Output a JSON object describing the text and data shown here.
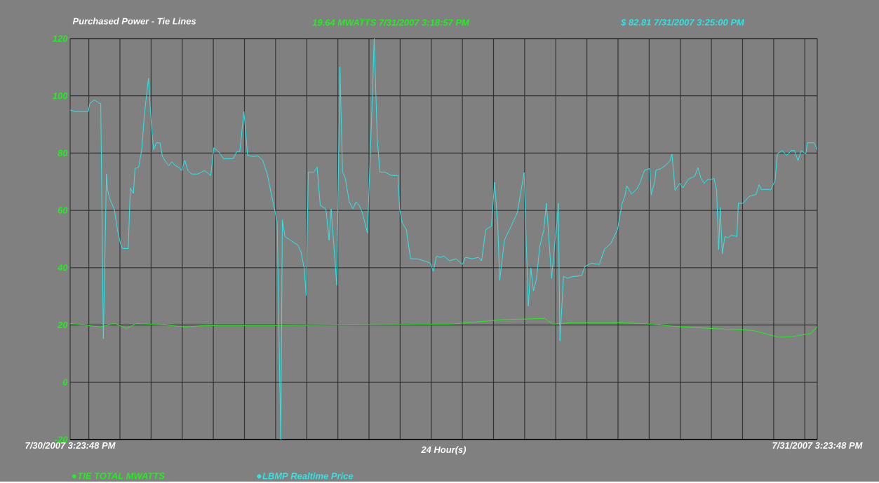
{
  "chart_data": {
    "type": "line",
    "title": "Purchased Power - Tie Lines",
    "xlabel": "24 Hour(s)",
    "annotations": [
      "19.64 MWATTS 7/31/2007 3:18:57 PM",
      "$ 82.81 7/31/2007 3:25:00 PM"
    ],
    "xlim": [
      "2007-07-30T15:24",
      "2007-07-31T15:24"
    ],
    "ylim": [
      -20,
      120
    ],
    "yticks": [
      -20,
      0,
      20,
      40,
      60,
      80,
      100,
      120
    ],
    "xticks": [
      {
        "value": "2007-07-30T15:24",
        "label": "7/30/2007 3:23:48 PM"
      },
      {
        "value": "2007-07-30T16:00",
        "label": null
      },
      {
        "value": "2007-07-30T17:00",
        "label": null
      },
      {
        "value": "2007-07-30T18:00",
        "label": null
      },
      {
        "value": "2007-07-30T19:00",
        "label": null
      },
      {
        "value": "2007-07-30T20:00",
        "label": null
      },
      {
        "value": "2007-07-30T21:00",
        "label": null
      },
      {
        "value": "2007-07-30T22:00",
        "label": null
      },
      {
        "value": "2007-07-30T23:00",
        "label": null
      },
      {
        "value": "2007-07-31T00:00",
        "label": null
      },
      {
        "value": "2007-07-31T01:00",
        "label": null
      },
      {
        "value": "2007-07-31T02:00",
        "label": null
      },
      {
        "value": "2007-07-31T03:00",
        "label": null
      },
      {
        "value": "2007-07-31T04:00",
        "label": null
      },
      {
        "value": "2007-07-31T05:00",
        "label": null
      },
      {
        "value": "2007-07-31T06:00",
        "label": null
      },
      {
        "value": "2007-07-31T07:00",
        "label": null
      },
      {
        "value": "2007-07-31T08:00",
        "label": null
      },
      {
        "value": "2007-07-31T09:00",
        "label": null
      },
      {
        "value": "2007-07-31T10:00",
        "label": null
      },
      {
        "value": "2007-07-31T11:00",
        "label": null
      },
      {
        "value": "2007-07-31T12:00",
        "label": null
      },
      {
        "value": "2007-07-31T13:00",
        "label": null
      },
      {
        "value": "2007-07-31T14:00",
        "label": null
      },
      {
        "value": "2007-07-31T15:00",
        "label": null
      },
      {
        "value": "2007-07-31T15:24",
        "label": "7/31/2007 3:23:48 PM"
      }
    ],
    "grid": true,
    "legend": "bottom",
    "series": [
      {
        "name": "TIE TOTAL MWATTS",
        "color": "#22ee22",
        "x": [
          "2007-07-30T15:24",
          "2007-07-30T15:59",
          "2007-07-30T16:23",
          "2007-07-30T16:49",
          "2007-07-30T17:13",
          "2007-07-30T17:32",
          "2007-07-30T18:28",
          "2007-07-30T19:05",
          "2007-07-30T19:43",
          "2007-07-30T22:03",
          "2007-07-31T03:39",
          "2007-07-31T04:44",
          "2007-07-31T05:14",
          "2007-07-31T06:39",
          "2007-07-31T06:54",
          "2007-07-31T07:31",
          "2007-07-31T08:56",
          "2007-07-31T09:48",
          "2007-07-31T11:03",
          "2007-07-31T13:20",
          "2007-07-31T14:10",
          "2007-07-31T14:34",
          "2007-07-31T15:11",
          "2007-07-31T15:24"
        ],
        "values": [
          20.5,
          19.8,
          19.3,
          20.5,
          18.8,
          20.5,
          20.0,
          19.3,
          19.8,
          19.8,
          20.3,
          21.3,
          21.8,
          22.3,
          20.3,
          20.8,
          20.8,
          20.5,
          19.3,
          18.1,
          15.7,
          15.9,
          17.0,
          19.3
        ]
      },
      {
        "name": "LBMP Realtime Price",
        "color": "#2ee6e6",
        "x": [
          "2007-07-30T15:24",
          "2007-07-30T15:34",
          "2007-07-30T15:59",
          "2007-07-30T16:02",
          "2007-07-30T16:11",
          "2007-07-30T16:20",
          "2007-07-30T16:23",
          "2007-07-30T16:28",
          "2007-07-30T16:34",
          "2007-07-30T16:36",
          "2007-07-30T16:40",
          "2007-07-30T16:49",
          "2007-07-30T16:55",
          "2007-07-30T17:01",
          "2007-07-30T17:05",
          "2007-07-30T17:16",
          "2007-07-30T17:20",
          "2007-07-30T17:26",
          "2007-07-30T17:29",
          "2007-07-30T17:36",
          "2007-07-30T17:42",
          "2007-07-30T17:47",
          "2007-07-30T17:55",
          "2007-07-30T18:01",
          "2007-07-30T18:05",
          "2007-07-30T18:10",
          "2007-07-30T18:17",
          "2007-07-30T18:22",
          "2007-07-30T18:28",
          "2007-07-30T18:34",
          "2007-07-30T18:40",
          "2007-07-30T18:47",
          "2007-07-30T18:53",
          "2007-07-30T18:59",
          "2007-07-30T19:05",
          "2007-07-30T19:11",
          "2007-07-30T19:18",
          "2007-07-30T19:30",
          "2007-07-30T19:43",
          "2007-07-30T19:55",
          "2007-07-30T20:01",
          "2007-07-30T20:10",
          "2007-07-30T20:20",
          "2007-07-30T20:38",
          "2007-07-30T20:45",
          "2007-07-30T20:51",
          "2007-07-30T20:59",
          "2007-07-30T21:06",
          "2007-07-30T21:16",
          "2007-07-30T21:26",
          "2007-07-30T21:35",
          "2007-07-30T21:44",
          "2007-07-30T21:52",
          "2007-07-30T21:58",
          "2007-07-30T22:03",
          "2007-07-30T22:10",
          "2007-07-30T22:13",
          "2007-07-30T22:18",
          "2007-07-30T22:28",
          "2007-07-30T22:43",
          "2007-07-30T22:49",
          "2007-07-30T22:55",
          "2007-07-30T22:59",
          "2007-07-30T23:03",
          "2007-07-30T23:14",
          "2007-07-30T23:20",
          "2007-07-30T23:26",
          "2007-07-30T23:37",
          "2007-07-30T23:43",
          "2007-07-30T23:47",
          "2007-07-30T23:58",
          "2007-07-31T00:04",
          "2007-07-31T00:09",
          "2007-07-31T00:14",
          "2007-07-31T00:22",
          "2007-07-31T00:29",
          "2007-07-31T00:35",
          "2007-07-31T00:41",
          "2007-07-31T00:47",
          "2007-07-31T00:57",
          "2007-07-31T01:06",
          "2007-07-31T01:10",
          "2007-07-31T01:16",
          "2007-07-31T01:21",
          "2007-07-31T01:31",
          "2007-07-31T01:43",
          "2007-07-31T01:56",
          "2007-07-31T01:59",
          "2007-07-31T02:04",
          "2007-07-31T02:12",
          "2007-07-31T02:20",
          "2007-07-31T02:33",
          "2007-07-31T02:46",
          "2007-07-31T02:58",
          "2007-07-31T03:04",
          "2007-07-31T03:10",
          "2007-07-31T03:17",
          "2007-07-31T03:25",
          "2007-07-31T03:35",
          "2007-07-31T03:48",
          "2007-07-31T04:00",
          "2007-07-31T04:06",
          "2007-07-31T04:19",
          "2007-07-31T04:31",
          "2007-07-31T04:37",
          "2007-07-31T04:45",
          "2007-07-31T04:56",
          "2007-07-31T05:02",
          "2007-07-31T05:08",
          "2007-07-31T05:12",
          "2007-07-31T05:21",
          "2007-07-31T05:34",
          "2007-07-31T05:46",
          "2007-07-31T05:59",
          "2007-07-31T06:07",
          "2007-07-31T06:12",
          "2007-07-31T06:17",
          "2007-07-31T06:23",
          "2007-07-31T06:29",
          "2007-07-31T06:37",
          "2007-07-31T06:42",
          "2007-07-31T06:52",
          "2007-07-31T06:58",
          "2007-07-31T07:02",
          "2007-07-31T07:05",
          "2007-07-31T07:08",
          "2007-07-31T07:15",
          "2007-07-31T07:22",
          "2007-07-31T07:31",
          "2007-07-31T07:50",
          "2007-07-31T07:56",
          "2007-07-31T08:09",
          "2007-07-31T08:24",
          "2007-07-31T08:34",
          "2007-07-31T08:46",
          "2007-07-31T08:59",
          "2007-07-31T09:08",
          "2007-07-31T09:13",
          "2007-07-31T09:17",
          "2007-07-31T09:26",
          "2007-07-31T09:36",
          "2007-07-31T09:42",
          "2007-07-31T09:51",
          "2007-07-31T10:01",
          "2007-07-31T10:04",
          "2007-07-31T10:11",
          "2007-07-31T10:13",
          "2007-07-31T10:23",
          "2007-07-31T10:32",
          "2007-07-31T10:40",
          "2007-07-31T10:44",
          "2007-07-31T10:50",
          "2007-07-31T10:59",
          "2007-07-31T11:05",
          "2007-07-31T11:15",
          "2007-07-31T11:28",
          "2007-07-31T11:34",
          "2007-07-31T11:40",
          "2007-07-31T11:46",
          "2007-07-31T11:53",
          "2007-07-31T11:59",
          "2007-07-31T12:05",
          "2007-07-31T12:10",
          "2007-07-31T12:14",
          "2007-07-31T12:17",
          "2007-07-31T12:21",
          "2007-07-31T12:26",
          "2007-07-31T12:32",
          "2007-07-31T12:38",
          "2007-07-31T12:49",
          "2007-07-31T12:52",
          "2007-07-31T13:01",
          "2007-07-31T13:13",
          "2007-07-31T13:26",
          "2007-07-31T13:32",
          "2007-07-31T13:36",
          "2007-07-31T13:55",
          "2007-07-31T14:03",
          "2007-07-31T14:07",
          "2007-07-31T14:16",
          "2007-07-31T14:25",
          "2007-07-31T14:34",
          "2007-07-31T14:40",
          "2007-07-31T14:47",
          "2007-07-31T14:53",
          "2007-07-31T15:02",
          "2007-07-31T15:05",
          "2007-07-31T15:18",
          "2007-07-31T15:24"
        ],
        "values": [
          95.0,
          94.5,
          94.5,
          97.4,
          98.6,
          97.4,
          97.4,
          15.2,
          72.7,
          67.3,
          64.2,
          60.5,
          53.3,
          48.4,
          46.7,
          46.7,
          67.8,
          65.9,
          74.6,
          75.1,
          81.2,
          93.3,
          106.2,
          88.4,
          81.2,
          83.6,
          83.6,
          78.8,
          77.0,
          75.6,
          77.0,
          75.6,
          75.1,
          73.9,
          77.5,
          73.9,
          72.7,
          72.7,
          73.9,
          72.2,
          81.9,
          80.5,
          78.0,
          78.0,
          80.5,
          80.5,
          94.5,
          79.2,
          78.8,
          79.0,
          77.5,
          72.7,
          65.4,
          60.5,
          55.7,
          -20,
          56.7,
          50.9,
          49.6,
          47.9,
          45.5,
          39.9,
          30.2,
          73.4,
          73.4,
          75.1,
          61.8,
          60.5,
          49.6,
          60.5,
          33.8,
          110.1,
          73.4,
          71.5,
          63.0,
          60.5,
          63.0,
          61.8,
          59.3,
          52.1,
          96.9,
          120,
          84.8,
          73.4,
          73.4,
          72.2,
          72.2,
          60.5,
          55.7,
          53.3,
          43.1,
          43.1,
          42.4,
          41.6,
          38.7,
          44.0,
          43.6,
          44.0,
          42.4,
          43.1,
          41.1,
          43.6,
          43.1,
          43.6,
          42.4,
          53.3,
          54.5,
          69.8,
          55.7,
          35.6,
          49.6,
          54.5,
          59.3,
          73.2,
          26.6,
          39.9,
          31.9,
          36.3,
          47.2,
          53.3,
          62.5,
          36.3,
          48.4,
          55.2,
          62.5,
          14.4,
          37.0,
          36.3,
          36.8,
          37.3,
          40.4,
          41.6,
          41.1,
          46.5,
          48.4,
          53.3,
          62.5,
          64.9,
          68.6,
          65.7,
          67.4,
          69.5,
          74.0,
          74.6,
          65.4,
          70.3,
          74.0,
          74.6,
          75.8,
          77.3,
          79.7,
          67.0,
          69.5,
          67.8,
          70.8,
          72.0,
          74.9,
          71.2,
          69.5,
          70.8,
          70.8,
          71.2,
          67.0,
          46.3,
          61.0,
          44.8,
          50.9,
          50.4,
          51.3,
          50.9,
          62.5,
          62.5,
          64.9,
          65.6,
          69.0,
          67.3,
          67.3,
          70.7,
          79.7,
          80.9,
          79.2,
          80.9,
          80.9,
          77.3,
          80.9,
          79.7,
          83.6,
          83.6,
          81.2
        ]
      }
    ]
  }
}
